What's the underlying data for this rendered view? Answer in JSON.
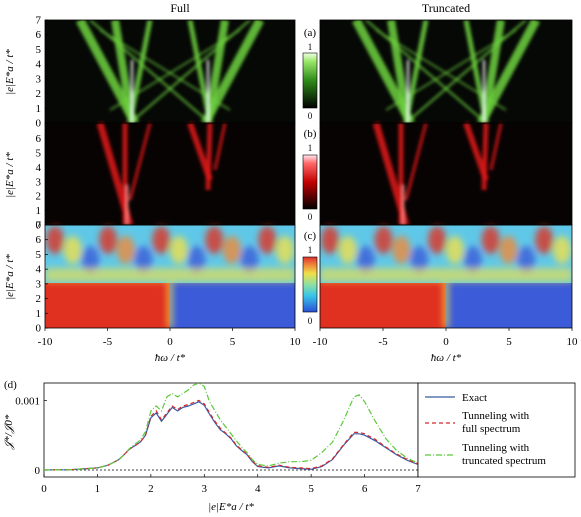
{
  "titles": {
    "left": "Full",
    "right": "Truncated",
    "left_color": "#d62728",
    "right_color": "#3a8fd6"
  },
  "panel_labels": {
    "a": "(a)",
    "b": "(b)",
    "c": "(c)",
    "d": "(d)"
  },
  "colorbar": {
    "max_label": "1",
    "min_label": "0"
  },
  "heatmap_axes": {
    "ylabel": "|e|E*a / t*",
    "xlabel": "ħω / t*",
    "yticks": [
      "0",
      "1",
      "2",
      "3",
      "4",
      "5",
      "6",
      "7"
    ],
    "yticks_short": [
      "0",
      "1",
      "2",
      "3",
      "4",
      "5",
      "6"
    ],
    "xticks": [
      "-10",
      "-5",
      "0",
      "5",
      "10"
    ]
  },
  "chart_data": {
    "type": "line",
    "xlabel": "|e|E*a / t*",
    "ylabel": "𝒥*/𝒥0*",
    "xlim": [
      0,
      7
    ],
    "ylim": [
      -0.0001,
      0.00125
    ],
    "xticks": [
      "0",
      "1",
      "2",
      "3",
      "4",
      "5",
      "6",
      "7"
    ],
    "yticks": [
      {
        "v": 0,
        "label": "0"
      },
      {
        "v": 0.001,
        "label": "0.001"
      }
    ],
    "legend_position": "right",
    "series": [
      {
        "name": "Exact",
        "color": "#3b5ba5",
        "dash": "solid",
        "x": [
          0,
          0.5,
          1.0,
          1.2,
          1.4,
          1.5,
          1.6,
          1.7,
          1.8,
          1.9,
          2.0,
          2.1,
          2.2,
          2.3,
          2.4,
          2.5,
          2.6,
          2.7,
          2.8,
          2.9,
          3.0,
          3.1,
          3.2,
          3.3,
          3.4,
          3.5,
          3.6,
          3.7,
          3.8,
          3.9,
          4.0,
          4.2,
          4.4,
          4.6,
          4.8,
          5.0,
          5.2,
          5.4,
          5.6,
          5.8,
          5.9,
          6.0,
          6.2,
          6.4,
          6.6,
          6.8,
          7.0
        ],
        "y": [
          0,
          5e-06,
          3e-05,
          7e-05,
          0.00015,
          0.00022,
          0.0003,
          0.00035,
          0.0004,
          0.0005,
          0.00075,
          0.00082,
          0.0007,
          0.0008,
          0.0009,
          0.00085,
          0.0009,
          0.00092,
          0.00095,
          0.00098,
          0.00093,
          0.0008,
          0.00068,
          0.00058,
          0.00052,
          0.00045,
          0.00035,
          0.00028,
          0.00022,
          0.00012,
          5e-05,
          3e-05,
          6e-05,
          3e-05,
          2e-05,
          1e-05,
          5e-05,
          0.00015,
          0.00035,
          0.00052,
          0.00052,
          0.0005,
          0.00042,
          0.00032,
          0.00022,
          0.00014,
          8e-05
        ]
      },
      {
        "name": "Tunneling with full spectrum",
        "color": "#d62728",
        "dash": "4,3",
        "x": [
          0,
          0.5,
          1.0,
          1.2,
          1.4,
          1.5,
          1.6,
          1.7,
          1.8,
          1.9,
          2.0,
          2.1,
          2.2,
          2.3,
          2.4,
          2.5,
          2.6,
          2.7,
          2.8,
          2.9,
          3.0,
          3.1,
          3.2,
          3.3,
          3.4,
          3.5,
          3.6,
          3.7,
          3.8,
          3.9,
          4.0,
          4.2,
          4.4,
          4.6,
          4.8,
          5.0,
          5.2,
          5.4,
          5.6,
          5.8,
          5.9,
          6.0,
          6.2,
          6.4,
          6.6,
          6.8,
          7.0
        ],
        "y": [
          0,
          5e-06,
          3e-05,
          7e-05,
          0.00015,
          0.00022,
          0.0003,
          0.00035,
          0.0004,
          0.0005,
          0.00077,
          0.00085,
          0.00072,
          0.00082,
          0.00092,
          0.00087,
          0.00092,
          0.00094,
          0.00097,
          0.001,
          0.00095,
          0.00082,
          0.0007,
          0.0006,
          0.00053,
          0.00046,
          0.00036,
          0.00029,
          0.00023,
          0.00013,
          6e-05,
          4e-05,
          7e-05,
          4e-05,
          3e-05,
          2e-05,
          6e-05,
          0.00016,
          0.00036,
          0.00054,
          0.00054,
          0.00052,
          0.00044,
          0.00033,
          0.00023,
          0.00015,
          9e-05
        ]
      },
      {
        "name": "Tunneling with truncated spectrum",
        "color": "#5cc93a",
        "dash": "6,2,1,2",
        "x": [
          0,
          0.5,
          1.0,
          1.2,
          1.4,
          1.5,
          1.6,
          1.7,
          1.8,
          1.9,
          2.0,
          2.1,
          2.2,
          2.3,
          2.4,
          2.5,
          2.6,
          2.7,
          2.8,
          2.9,
          3.0,
          3.1,
          3.2,
          3.3,
          3.4,
          3.5,
          3.6,
          3.7,
          3.8,
          3.9,
          4.0,
          4.2,
          4.4,
          4.6,
          4.8,
          5.0,
          5.2,
          5.4,
          5.6,
          5.8,
          5.9,
          6.0,
          6.2,
          6.4,
          6.6,
          6.8,
          7.0
        ],
        "y": [
          0,
          5e-06,
          3e-05,
          7e-05,
          0.00015,
          0.00022,
          0.00031,
          0.00037,
          0.00043,
          0.00055,
          0.00085,
          0.00092,
          0.00085,
          0.00105,
          0.0011,
          0.00105,
          0.0011,
          0.00115,
          0.00122,
          0.00125,
          0.0012,
          0.00098,
          0.00085,
          0.00072,
          0.00062,
          0.00052,
          0.00042,
          0.00033,
          0.00025,
          0.00015,
          8e-05,
          6e-05,
          0.0001,
          0.00012,
          0.00012,
          0.00014,
          0.00025,
          0.0004,
          0.0007,
          0.00105,
          0.00108,
          0.00098,
          0.0007,
          0.00045,
          0.00028,
          0.00017,
          0.0001
        ]
      }
    ]
  },
  "legend": {
    "exact": "Exact",
    "full1": "Tunneling with",
    "full2": "full spectrum",
    "trunc1": "Tunneling with",
    "trunc2": "truncated spectrum"
  }
}
